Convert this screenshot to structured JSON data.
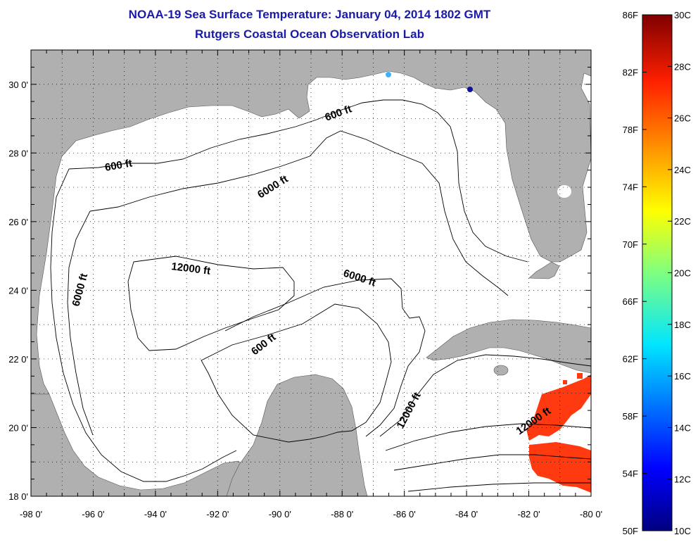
{
  "header": {
    "title": "NOAA-19 Sea Surface Temperature:  January 04, 2014 1802 GMT",
    "subtitle": "Rutgers Coastal Ocean Observation Lab"
  },
  "map": {
    "lat_ticks": [
      "30 0'",
      "28 0'",
      "26 0'",
      "24 0'",
      "22 0'",
      "20 0'",
      "18 0'"
    ],
    "lon_ticks": [
      "-98 0'",
      "-96 0'",
      "-94 0'",
      "-92 0'",
      "-90 0'",
      "-88 0'",
      "-86 0'",
      "-84 0'",
      "-82 0'",
      "-80 0'"
    ],
    "contour_labels": [
      {
        "text": "600 ft"
      },
      {
        "text": "600 ft"
      },
      {
        "text": "6000 ft"
      },
      {
        "text": "6000 ft"
      },
      {
        "text": "12000 ft"
      },
      {
        "text": "6000 ft"
      },
      {
        "text": "600 ft"
      },
      {
        "text": "12000 ft"
      },
      {
        "text": "12000 ft"
      }
    ],
    "colors": {
      "land": "#b0b0b0",
      "ocean": "#ffffff",
      "contour": "#000000",
      "warm_sst": "#ff3a10"
    }
  },
  "colorbar": {
    "fahrenheit_labels": [
      "86F",
      "82F",
      "78F",
      "74F",
      "70F",
      "66F",
      "62F",
      "58F",
      "54F",
      "50F"
    ],
    "celsius_labels": [
      "30C",
      "28C",
      "26C",
      "24C",
      "22C",
      "20C",
      "18C",
      "16C",
      "14C",
      "12C",
      "10C"
    ],
    "colormap": "jet"
  }
}
